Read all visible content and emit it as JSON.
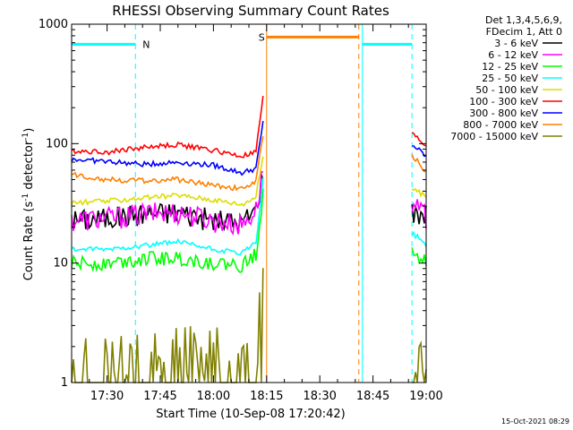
{
  "chart_data": {
    "type": "line",
    "title": "RHESSI Observing Summary Count Rates",
    "xlabel": "Start Time (10-Sep-08 17:20:42)",
    "ylabel_main": "Count Rate (s",
    "ylabel_sup1": "-1",
    "ylabel_mid": " detector",
    "ylabel_sup2": "-1",
    "ylabel_end": ")",
    "yscale": "log",
    "ylim": [
      1,
      1000
    ],
    "xlim": [
      "17:20",
      "19:00"
    ],
    "x_ticks": [
      "17:30",
      "17:45",
      "18:00",
      "18:15",
      "18:30",
      "18:45",
      "19:00"
    ],
    "y_ticks": [
      "1",
      "10",
      "100",
      "1000"
    ],
    "legend_header": [
      "Det 1,3,4,5,6,9,",
      "FDecim 1, Att 0"
    ],
    "data_gap": [
      "18:14",
      "18:56"
    ],
    "series": [
      {
        "name": "3 - 6 keV",
        "color": "#000000",
        "x": [
          "17:20",
          "17:30",
          "17:40",
          "17:50",
          "18:00",
          "18:08",
          "18:12",
          "18:14",
          "18:56",
          "19:00"
        ],
        "y": [
          23,
          24,
          26,
          27,
          23,
          22,
          28,
          60,
          27,
          26
        ]
      },
      {
        "name": "6 - 12 keV",
        "color": "#ff00ff",
        "x": [
          "17:20",
          "17:30",
          "17:40",
          "17:50",
          "18:00",
          "18:08",
          "18:12",
          "18:14",
          "18:56",
          "19:00"
        ],
        "y": [
          23,
          24,
          26,
          27,
          23,
          21,
          28,
          60,
          30,
          25
        ]
      },
      {
        "name": "12 - 25 keV",
        "color": "#00ff00",
        "x": [
          "17:20",
          "17:30",
          "17:40",
          "17:50",
          "18:00",
          "18:08",
          "18:12",
          "18:14",
          "18:56",
          "19:00"
        ],
        "y": [
          10,
          10,
          11,
          11,
          10,
          9.5,
          12,
          40,
          13,
          10.5
        ]
      },
      {
        "name": "25 - 50 keV",
        "color": "#00ffff",
        "x": [
          "17:20",
          "17:30",
          "17:40",
          "17:50",
          "18:00",
          "18:08",
          "18:12",
          "18:14",
          "18:56",
          "19:00"
        ],
        "y": [
          13,
          13,
          14,
          15,
          13,
          12,
          15,
          50,
          18,
          14
        ]
      },
      {
        "name": "50 - 100 keV",
        "color": "#dddd00",
        "x": [
          "17:20",
          "17:30",
          "17:40",
          "17:50",
          "18:00",
          "18:08",
          "18:12",
          "18:14",
          "18:56",
          "19:00"
        ],
        "y": [
          32,
          33,
          35,
          37,
          34,
          31,
          36,
          80,
          42,
          36
        ]
      },
      {
        "name": "100 - 300 keV",
        "color": "#ff0000",
        "x": [
          "17:20",
          "17:30",
          "17:40",
          "17:50",
          "18:00",
          "18:08",
          "18:12",
          "18:14",
          "18:56",
          "19:00"
        ],
        "y": [
          87,
          85,
          93,
          98,
          88,
          78,
          85,
          250,
          120,
          95
        ]
      },
      {
        "name": "300 - 800 keV",
        "color": "#0000ff",
        "x": [
          "17:20",
          "17:30",
          "17:40",
          "17:50",
          "18:00",
          "18:08",
          "18:12",
          "18:14",
          "18:56",
          "19:00"
        ],
        "y": [
          74,
          71,
          67,
          70,
          66,
          57,
          62,
          150,
          98,
          78
        ]
      },
      {
        "name": "800 - 7000 keV",
        "color": "#ff8000",
        "x": [
          "17:20",
          "17:30",
          "17:40",
          "17:50",
          "18:00",
          "18:08",
          "18:12",
          "18:14",
          "18:56",
          "19:00"
        ],
        "y": [
          55,
          50,
          49,
          50,
          45,
          42,
          48,
          120,
          80,
          58
        ]
      },
      {
        "name": "7000 - 15000 keV",
        "color": "#808000",
        "x": [
          "17:20",
          "17:30",
          "17:40",
          "17:50",
          "18:00",
          "18:08",
          "18:12",
          "18:14",
          "18:56",
          "19:00"
        ],
        "y": [
          1.5,
          2,
          2,
          2,
          2,
          1.5,
          3,
          12,
          2,
          1.5
        ]
      }
    ],
    "annotations": {
      "night_label": "N",
      "saa_label": "S",
      "night_color": "#00ffff",
      "saa_color": "#ff8000",
      "night_intervals": [
        [
          "17:20",
          "17:38"
        ],
        [
          "18:42",
          "18:56"
        ]
      ],
      "saa_interval": [
        "18:15",
        "18:41"
      ],
      "night_dashed": [
        "17:38",
        "18:56"
      ],
      "saa_dashed": "18:41"
    },
    "legend_placement": "top-right outside",
    "grid": false
  },
  "footer_date": "15-Oct-2021 08:29"
}
